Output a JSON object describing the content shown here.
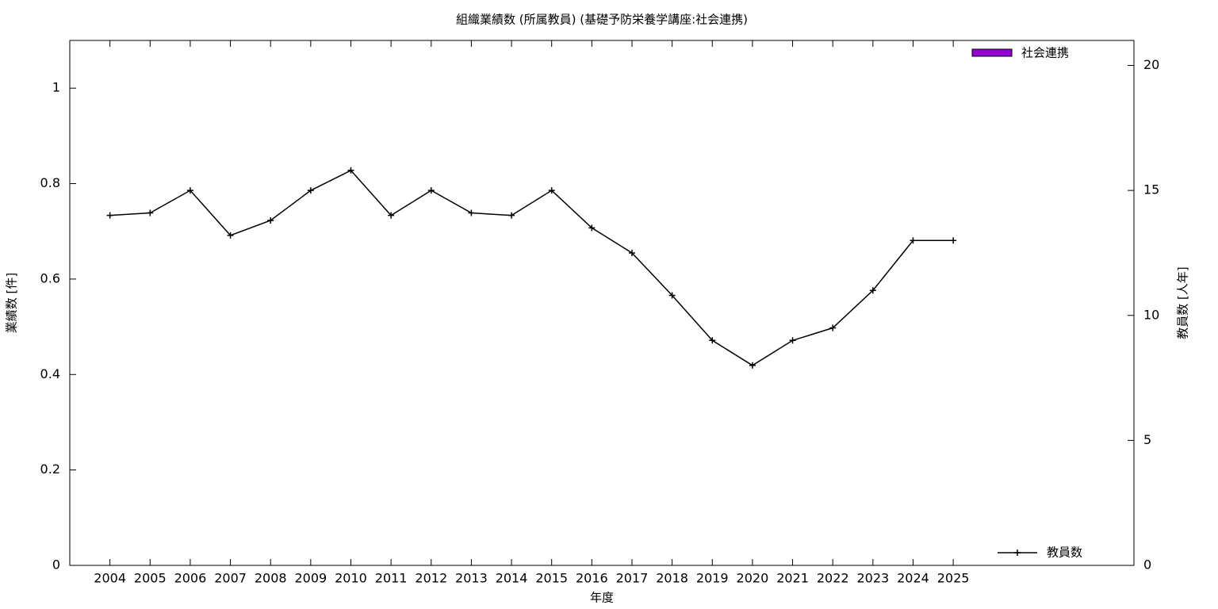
{
  "chart_data": {
    "type": "bar_line",
    "title": "組織業績数 (所属教員) (基礎予防栄養学講座:社会連携)",
    "x_label": "年度",
    "y_label": "業績数 [件]",
    "y2_label": "教員数 [人年]",
    "categories": [
      "2004",
      "2005",
      "2006",
      "2007",
      "2008",
      "2009",
      "2010",
      "2011",
      "2012",
      "2013",
      "2014",
      "2015",
      "2016",
      "2017",
      "2018",
      "2019",
      "2020",
      "2021",
      "2022",
      "2023",
      "2024",
      "2025"
    ],
    "series": [
      {
        "name": "社会連携",
        "type": "bar",
        "color": "#9400d3",
        "values": [
          0,
          0,
          0,
          0,
          0,
          0,
          0,
          0,
          0,
          0,
          0,
          0,
          0,
          0,
          0,
          0,
          0,
          0,
          0,
          0,
          0,
          0
        ]
      },
      {
        "name": "教員数",
        "type": "line",
        "axis": "y2",
        "color": "#000000",
        "values": [
          14,
          14.1,
          15,
          13.2,
          13.8,
          15,
          15.8,
          14,
          15,
          14.1,
          14,
          15,
          13.5,
          12.5,
          10.8,
          9,
          8,
          9,
          9.5,
          11,
          13,
          13
        ]
      }
    ],
    "ylim": [
      0,
      1.1
    ],
    "yticks": [
      0,
      0.2,
      0.4,
      0.6,
      0.8,
      1
    ],
    "y2lim": [
      0,
      21
    ],
    "y2ticks": [
      0,
      5,
      10,
      15,
      20
    ],
    "grid": false
  }
}
